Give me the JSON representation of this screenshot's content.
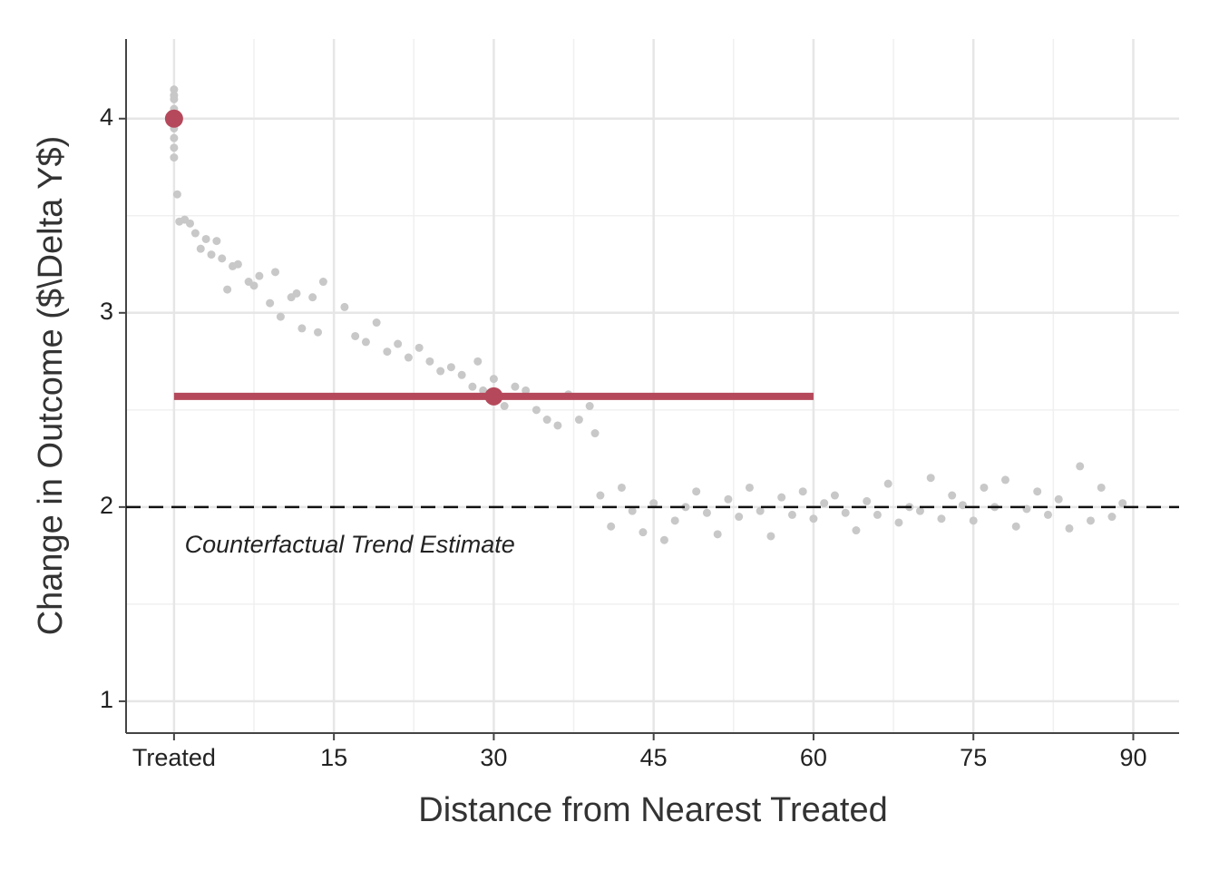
{
  "chart_data": {
    "type": "scatter",
    "x_label": "Distance from Nearest Treated",
    "y_label": "Change in Outcome ($\\Delta Y$)",
    "xlim": [
      -4.5,
      94.3
    ],
    "ylim": [
      0.836,
      4.41
    ],
    "xticks": [
      {
        "value": 0,
        "label": "Treated"
      },
      15,
      30,
      45,
      60,
      75,
      90
    ],
    "yticks": [
      1,
      2,
      3,
      4
    ],
    "xminor": [
      7.5,
      22.5,
      37.5,
      52.5,
      67.5,
      82.5
    ],
    "yminor": [
      1.5,
      2.5,
      3.5
    ],
    "grid": true,
    "points": {
      "color": "#c8c8c8",
      "x": [
        0,
        0,
        0,
        0,
        0,
        0,
        0,
        0,
        0,
        0,
        0.3,
        0.5,
        1,
        1.5,
        2,
        2.5,
        3,
        3.5,
        4,
        4.5,
        5,
        5.5,
        6,
        7,
        7.5,
        8,
        9,
        9.5,
        10,
        11,
        11.5,
        12,
        13,
        13.5,
        14,
        16,
        17,
        18,
        19,
        20,
        21,
        22,
        23,
        24,
        25,
        26,
        27,
        28,
        28.5,
        29,
        30,
        31,
        32,
        33,
        34,
        35,
        36,
        37,
        38,
        39,
        39.5,
        40,
        41,
        42,
        43,
        44,
        45,
        46,
        47,
        48,
        49,
        50,
        51,
        52,
        53,
        54,
        55,
        56,
        57,
        58,
        59,
        60,
        61,
        62,
        63,
        64,
        65,
        66,
        67,
        68,
        69,
        70,
        71,
        72,
        73,
        74,
        75,
        76,
        77,
        78,
        79,
        80,
        81,
        82,
        83,
        84,
        85,
        86,
        87,
        88,
        89
      ],
      "y": [
        4.15,
        4.1,
        4.05,
        4.0,
        3.95,
        3.9,
        3.85,
        3.8,
        4.12,
        3.98,
        3.61,
        3.47,
        3.48,
        3.46,
        3.41,
        3.33,
        3.38,
        3.3,
        3.37,
        3.28,
        3.12,
        3.24,
        3.25,
        3.16,
        3.14,
        3.19,
        3.05,
        3.21,
        2.98,
        3.08,
        3.1,
        2.92,
        3.08,
        2.9,
        3.16,
        3.03,
        2.88,
        2.85,
        2.95,
        2.8,
        2.84,
        2.77,
        2.82,
        2.75,
        2.7,
        2.72,
        2.68,
        2.62,
        2.75,
        2.6,
        2.66,
        2.52,
        2.62,
        2.6,
        2.5,
        2.45,
        2.42,
        2.58,
        2.45,
        2.52,
        2.38,
        2.06,
        1.9,
        2.1,
        1.98,
        1.87,
        2.02,
        1.83,
        1.93,
        2.0,
        2.08,
        1.97,
        1.86,
        2.04,
        1.95,
        2.1,
        1.98,
        1.85,
        2.05,
        1.96,
        2.08,
        1.94,
        2.02,
        2.06,
        1.97,
        1.88,
        2.03,
        1.96,
        2.12,
        1.92,
        2.0,
        1.98,
        2.15,
        1.94,
        2.06,
        2.01,
        1.93,
        2.1,
        2.0,
        2.14,
        1.9,
        1.99,
        2.08,
        1.96,
        2.04,
        1.89,
        2.21,
        1.93,
        2.1,
        1.95,
        2.02
      ]
    },
    "estimates": {
      "color": "#b5495b",
      "x": [
        0,
        30
      ],
      "y": [
        4.0,
        2.57
      ]
    },
    "estimate_span_x": [
      0,
      60
    ],
    "reference_y": 2,
    "annotation": {
      "text": "Counterfactual Trend Estimate",
      "x": 1,
      "y": 1.8
    }
  }
}
